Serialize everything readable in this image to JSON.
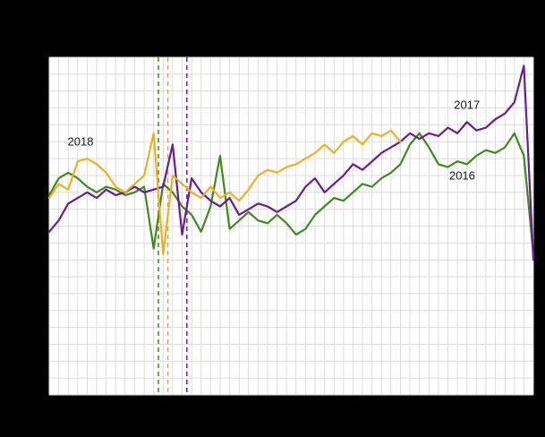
{
  "figure": {
    "background": "#000000",
    "plot_background": "#ffffff",
    "gridline_color": "#dcdcdc"
  },
  "chart_data": {
    "type": "line",
    "x_unit": "week",
    "weeks": 52,
    "xlim": [
      1,
      52
    ],
    "ylim": [
      40,
      160
    ],
    "grid": true,
    "y_grid_step": 6,
    "legend_position": "none",
    "series": [
      {
        "name": "2016",
        "color": "#3e8a1c",
        "values": [
          111,
          117,
          119,
          117,
          114,
          112,
          114,
          113,
          111,
          112,
          114,
          92,
          115,
          112,
          107,
          104,
          98,
          107,
          125,
          99,
          102,
          105,
          102,
          101,
          104,
          101,
          97,
          99,
          104,
          107,
          110,
          109,
          112,
          115,
          114,
          117,
          119,
          122,
          129,
          133,
          128,
          122,
          121,
          123,
          122,
          125,
          127,
          126,
          128,
          133,
          125,
          90
        ]
      },
      {
        "name": "2017",
        "color": "#6a1b9a",
        "values": [
          98,
          102,
          108,
          110,
          112,
          110,
          113,
          111,
          112,
          114,
          112,
          113,
          114,
          129,
          97,
          117,
          112,
          109,
          107,
          110,
          104,
          106,
          108,
          107,
          105,
          107,
          109,
          114,
          117,
          112,
          115,
          118,
          122,
          120,
          123,
          126,
          128,
          130,
          133,
          131,
          133,
          132,
          135,
          133,
          137,
          134,
          135,
          138,
          140,
          144,
          157,
          88
        ]
      },
      {
        "name": "2018",
        "color": "#efb020",
        "values": [
          110,
          115,
          113,
          123,
          124,
          122,
          119,
          114,
          112,
          115,
          118,
          133,
          90,
          118,
          115,
          112,
          110,
          114,
          110,
          112,
          109,
          113,
          118,
          120,
          119,
          121,
          122,
          124,
          126,
          129,
          126,
          130,
          132,
          129,
          133,
          132,
          134,
          130
        ]
      }
    ],
    "event_lines": [
      {
        "name": "dashed-marker-2016",
        "week": 12.5,
        "color": "#3e8a1c",
        "style": "dashed"
      },
      {
        "name": "dashed-marker-2018",
        "week": 13.5,
        "color": "#f0a31c",
        "style": "dashed"
      },
      {
        "name": "dashed-marker-2017",
        "week": 15.5,
        "color": "#6a1b9a",
        "style": "dashed"
      }
    ],
    "annotations": [
      {
        "text": "2018",
        "week": 4.3,
        "value": 130
      },
      {
        "text": "2017",
        "week": 45,
        "value": 143
      },
      {
        "text": "2016",
        "week": 44.5,
        "value": 118
      }
    ]
  }
}
